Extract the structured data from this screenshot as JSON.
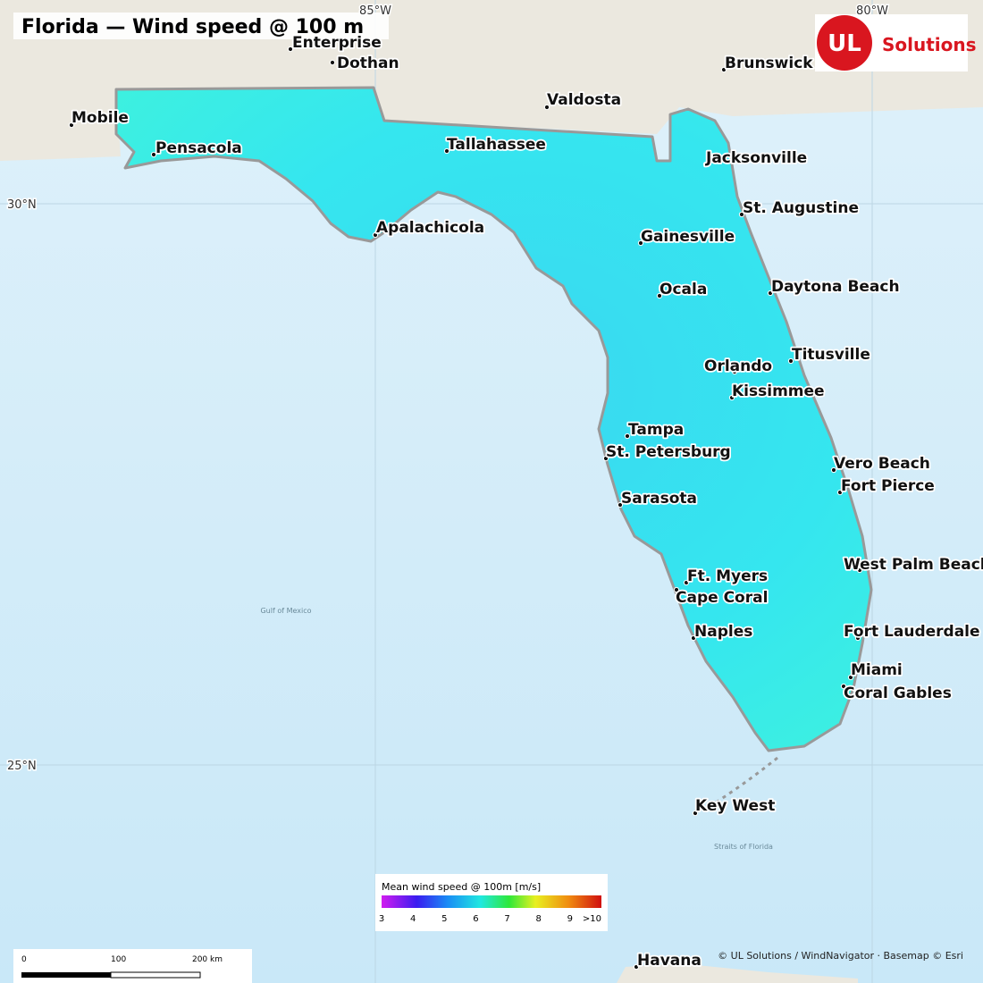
{
  "header": {
    "title": "Florida — Wind speed @ 100 m"
  },
  "logo": {
    "mark": "UL",
    "text": "Solutions"
  },
  "graticule": {
    "longitudes": [
      "85°W",
      "80°W"
    ],
    "latitudes": [
      "30°N",
      "25°N"
    ]
  },
  "water_labels": [
    "Gulf of Mexico",
    "Straits of Florida"
  ],
  "cities": [
    "Enterprise",
    "Dothan",
    "Mobile",
    "Pensacola",
    "Valdosta",
    "Brunswick",
    "Tallahassee",
    "Jacksonville",
    "Apalachicola",
    "St. Augustine",
    "Gainesville",
    "Ocala",
    "Daytona Beach",
    "Titusville",
    "Orlando",
    "Kissimmee",
    "Tampa",
    "St. Petersburg",
    "Vero Beach",
    "Fort Pierce",
    "Sarasota",
    "West Palm Beach",
    "Ft. Myers",
    "Cape Coral",
    "Naples",
    "Fort Lauderdale",
    "Miami",
    "Coral Gables",
    "Key West",
    "Havana"
  ],
  "legend": {
    "title": "Mean wind speed @ 100m  [m/s]",
    "ticks": [
      3,
      4,
      5,
      6,
      7,
      8,
      9,
      ">10"
    ]
  },
  "scale_bar": {
    "labels": [
      0,
      100,
      "200 km"
    ]
  },
  "attribution": "© UL Solutions / WindNavigator · Basemap © Esri"
}
